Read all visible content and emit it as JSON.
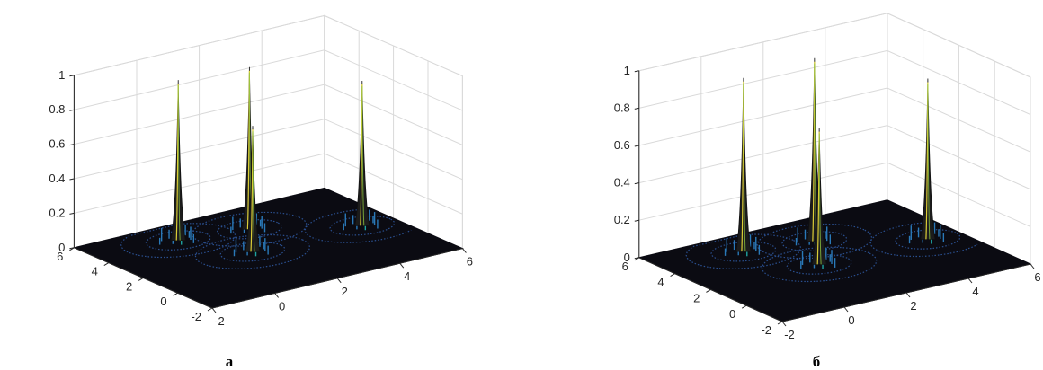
{
  "chart_data": [
    {
      "type": "surface",
      "panel_label": "а",
      "xlim": [
        -2,
        6
      ],
      "ylim": [
        -2,
        6
      ],
      "zlim": [
        0,
        1
      ],
      "x_ticks": [
        "-2",
        "0",
        "2",
        "4",
        "6"
      ],
      "y_ticks": [
        "-2",
        "0",
        "2",
        "4",
        "6"
      ],
      "z_ticks": [
        "0",
        "0.2",
        "0.4",
        "0.6",
        "0.8",
        "1"
      ],
      "grid": true,
      "colormap": [
        "#1b2a6b",
        "#2a79b8",
        "#1fa3a0",
        "#8dc63f",
        "#f2e23a"
      ],
      "peaks": [
        {
          "x": 0.5,
          "y": 4.5,
          "z": 0.93
        },
        {
          "x": 1.5,
          "y": 2.0,
          "z": 0.73
        },
        {
          "x": 2.5,
          "y": 4.0,
          "z": 0.94
        },
        {
          "x": 5.0,
          "y": 2.0,
          "z": 0.84
        }
      ]
    },
    {
      "type": "surface",
      "panel_label": "б",
      "xlim": [
        -2,
        6
      ],
      "ylim": [
        -2,
        6
      ],
      "zlim": [
        0,
        1
      ],
      "x_ticks": [
        "-2",
        "0",
        "2",
        "4",
        "6"
      ],
      "y_ticks": [
        "-2",
        "0",
        "2",
        "4",
        "6"
      ],
      "z_ticks": [
        "0",
        "0.2",
        "0.4",
        "0.6",
        "0.8",
        "1"
      ],
      "grid": true,
      "colormap": [
        "#1b2a6b",
        "#2a79b8",
        "#1fa3a0",
        "#8dc63f",
        "#f2e23a"
      ],
      "peaks": [
        {
          "x": 0.5,
          "y": 4.5,
          "z": 0.93
        },
        {
          "x": 1.5,
          "y": 2.0,
          "z": 0.73
        },
        {
          "x": 2.5,
          "y": 4.0,
          "z": 0.98
        },
        {
          "x": 5.0,
          "y": 2.0,
          "z": 0.86
        }
      ]
    }
  ]
}
